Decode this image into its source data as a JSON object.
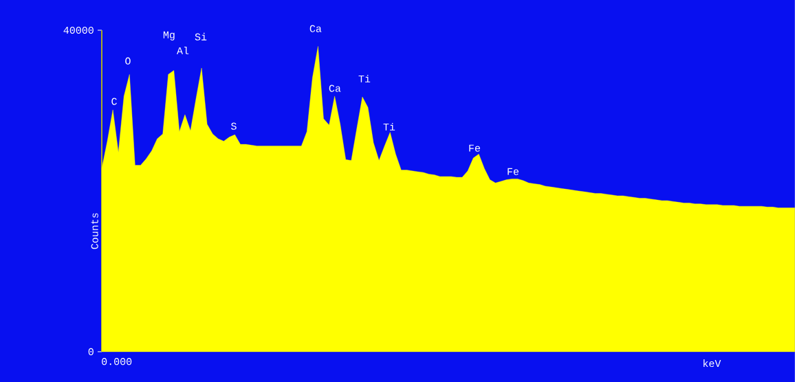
{
  "chart_data": {
    "type": "area",
    "xlabel": "keV",
    "ylabel": "Counts",
    "color": "#ffff00",
    "categories": [
      null,
      null,
      null,
      null,
      null,
      null,
      null,
      null,
      null,
      null,
      null,
      null,
      null,
      null,
      null,
      null,
      null,
      null,
      null,
      null,
      null,
      null,
      null,
      null,
      null,
      null,
      null,
      null,
      null,
      null,
      null,
      null,
      null,
      null,
      null,
      null,
      null,
      null,
      null,
      null,
      null,
      null,
      null,
      null,
      null,
      null,
      null,
      null,
      null,
      null,
      null,
      null,
      null,
      null,
      null,
      null,
      null,
      null,
      null,
      null,
      null,
      null,
      null,
      null,
      null,
      null,
      null,
      null,
      null,
      null,
      null,
      null,
      null,
      null,
      null,
      null,
      null,
      null,
      null,
      null,
      null,
      null,
      null,
      null,
      null,
      null,
      null,
      null,
      null,
      null,
      null,
      null,
      null,
      null,
      null,
      null,
      null,
      null,
      null,
      null,
      null,
      null,
      null,
      null,
      null,
      null,
      null,
      null,
      null,
      null,
      null,
      null,
      null,
      null,
      null,
      null,
      null,
      null,
      null,
      null,
      null,
      null,
      null,
      null,
      null,
      null
    ],
    "values": [
      22800,
      26200,
      30100,
      24800,
      31800,
      34500,
      23200,
      23200,
      24000,
      25000,
      26500,
      27100,
      34500,
      35000,
      27400,
      29500,
      27500,
      31500,
      35300,
      28300,
      27100,
      26500,
      26200,
      26700,
      27000,
      25800,
      25800,
      25700,
      25600,
      25600,
      25600,
      25600,
      25600,
      25600,
      25600,
      25600,
      25600,
      27400,
      34100,
      38000,
      29000,
      28200,
      31800,
      28300,
      23900,
      23800,
      27800,
      31700,
      30400,
      26000,
      23800,
      25600,
      27300,
      24600,
      22600,
      22600,
      22500,
      22400,
      22300,
      22100,
      22000,
      21800,
      21800,
      21800,
      21700,
      21700,
      22500,
      24100,
      24600,
      22800,
      21400,
      21000,
      21200,
      21400,
      21500,
      21500,
      21300,
      21000,
      20900,
      20800,
      20600,
      20500,
      20400,
      20300,
      20200,
      20100,
      20000,
      19900,
      19800,
      19700,
      19700,
      19600,
      19500,
      19400,
      19400,
      19300,
      19200,
      19100,
      19100,
      19000,
      18900,
      18800,
      18800,
      18700,
      18600,
      18500,
      18500,
      18400,
      18400,
      18300,
      18300,
      18300,
      18200,
      18200,
      18200,
      18100,
      18100,
      18100,
      18100,
      18100,
      18000,
      18000,
      17900,
      17900,
      17900,
      17900
    ],
    "ylim": [
      0,
      40000
    ],
    "yticks": [
      {
        "value": 0,
        "label": "0"
      },
      {
        "value": 40000,
        "label": "40000"
      }
    ],
    "annotations": [
      "0.000",
      "C",
      "O",
      "Mg",
      "Al",
      "Si",
      "S",
      "Ca",
      "Ca",
      "Ti",
      "Ti",
      "Fe",
      "Fe"
    ]
  }
}
